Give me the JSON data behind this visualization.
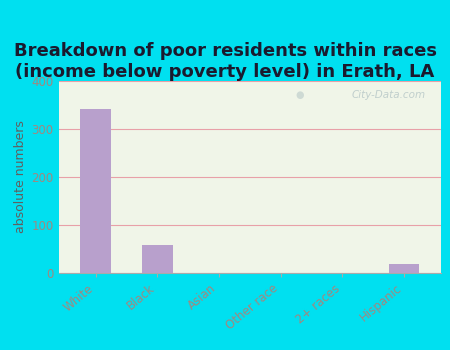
{
  "title": "Breakdown of poor residents within races\n(income below poverty level) in Erath, LA",
  "categories": [
    "White",
    "Black",
    "Asian",
    "Other race",
    "2+ races",
    "Hispanic"
  ],
  "values": [
    340,
    58,
    0,
    0,
    0,
    18
  ],
  "bar_color": "#b8a0cc",
  "ylabel": "absolute numbers",
  "ylim": [
    0,
    400
  ],
  "yticks": [
    0,
    100,
    200,
    300,
    400
  ],
  "bg_outer": "#00e0f0",
  "bg_plot_top": "#f0f5e8",
  "bg_plot_bottom": "#e0eed0",
  "grid_color": "#e8a0a8",
  "title_fontsize": 13,
  "axis_label_fontsize": 9,
  "tick_fontsize": 8.5,
  "watermark": "City-Data.com",
  "tick_color": "#a08880",
  "ylabel_color": "#606060"
}
